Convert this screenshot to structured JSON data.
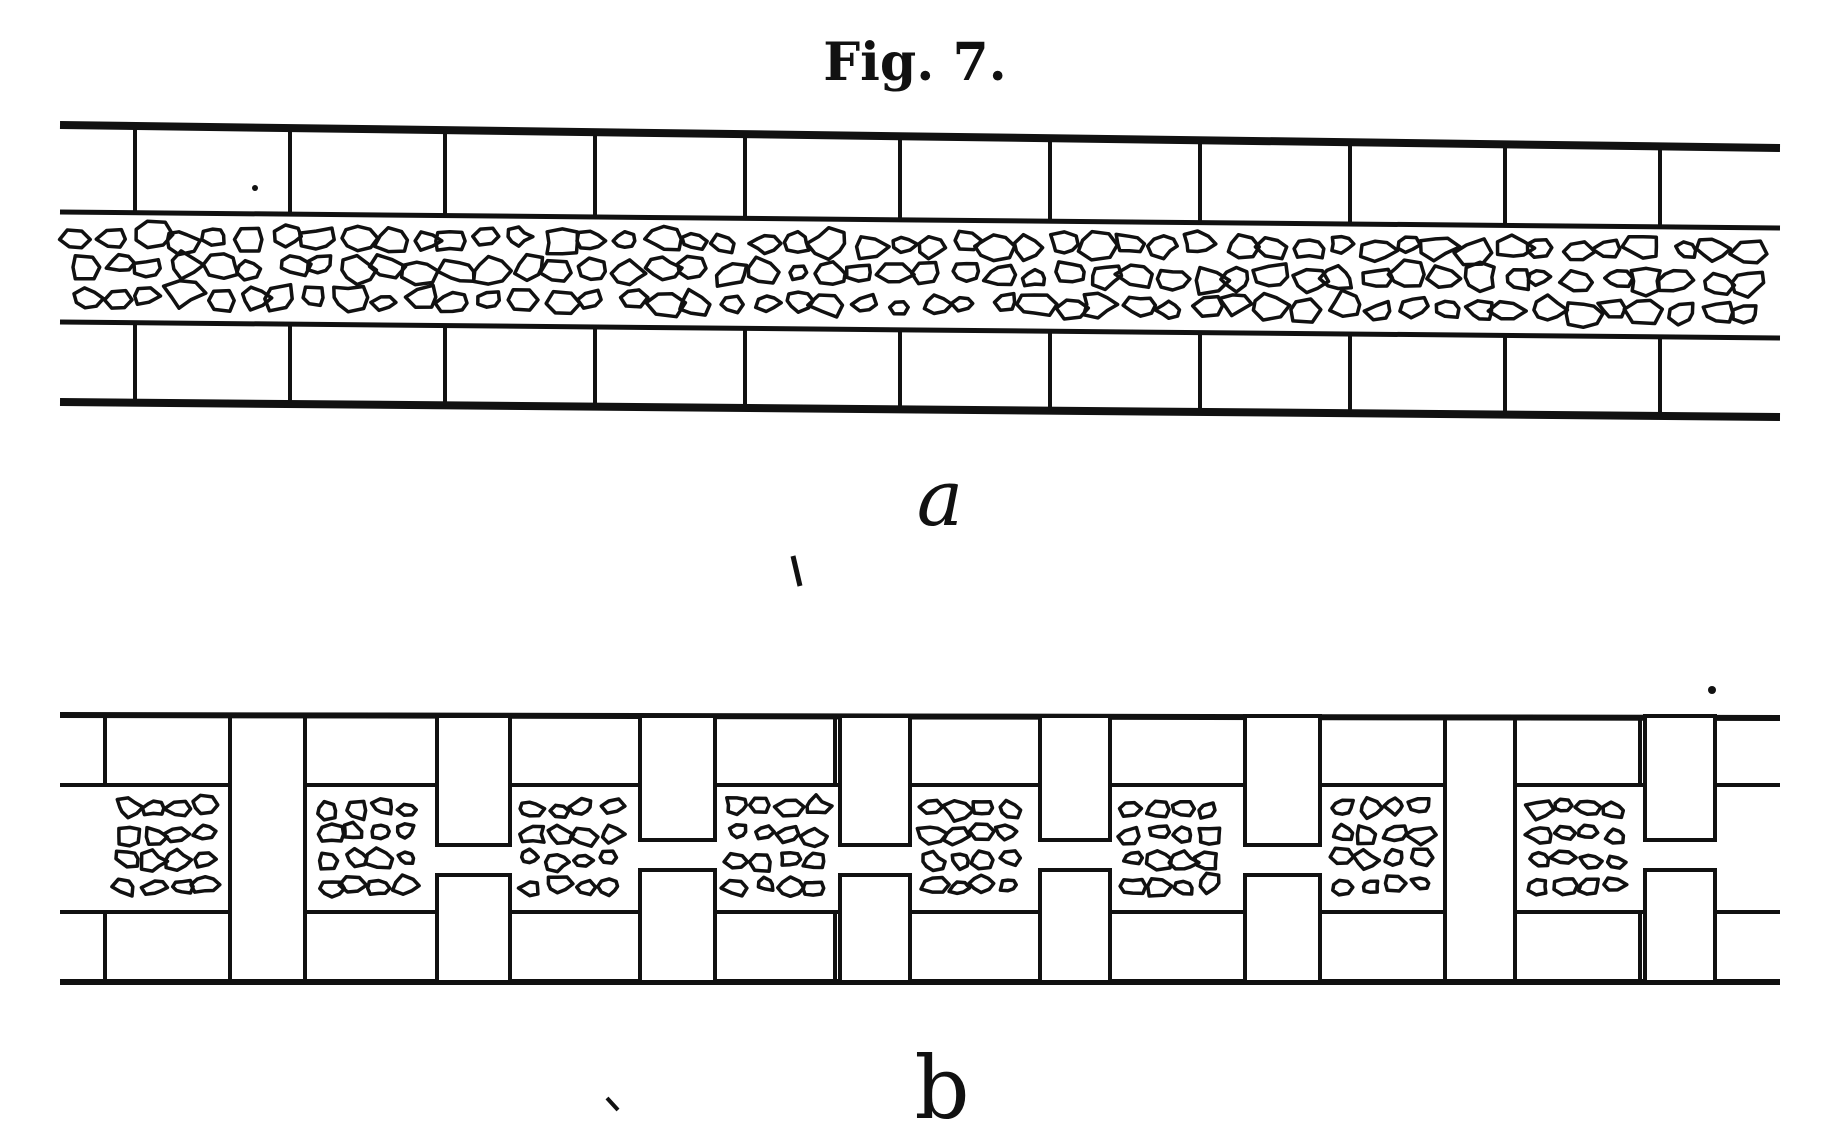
{
  "figure": {
    "title": "Fig. 7.",
    "panel_a_label": "a",
    "panel_b_label": "b"
  },
  "colors": {
    "ink": "#111111",
    "paper": "#ffffff"
  }
}
